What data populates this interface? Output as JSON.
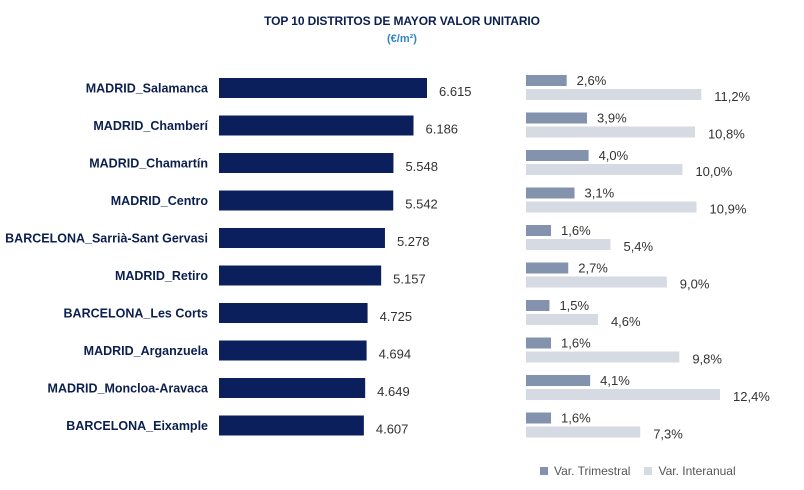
{
  "chart_data": {
    "type": "bar",
    "title": "TOP 10 DISTRITOS DE MAYOR VALOR UNITARIO",
    "subtitle": "(€/m²)",
    "categories": [
      "MADRID_Salamanca",
      "MADRID_Chamberí",
      "MADRID_Chamartín",
      "MADRID_Centro",
      "BARCELONA_Sarrià-Sant Gervasi",
      "MADRID_Retiro",
      "BARCELONA_Les Corts",
      "MADRID_Arganzuela",
      "MADRID_Moncloa-Aravaca",
      "BARCELONA_Eixample"
    ],
    "values": [
      6615,
      6186,
      5548,
      5542,
      5278,
      5157,
      4725,
      4694,
      4649,
      4607
    ],
    "value_labels": [
      "6.615",
      "6.186",
      "5.548",
      "5.542",
      "5.278",
      "5.157",
      "4.725",
      "4.694",
      "4.649",
      "4.607"
    ],
    "series": [
      {
        "name": "Var. Trimestral",
        "values": [
          2.6,
          3.9,
          4.0,
          3.1,
          1.6,
          2.7,
          1.5,
          1.6,
          4.1,
          1.6
        ],
        "labels": [
          "2,6%",
          "3,9%",
          "4,0%",
          "3,1%",
          "1,6%",
          "2,7%",
          "1,5%",
          "1,6%",
          "4,1%",
          "1,6%"
        ]
      },
      {
        "name": "Var. Interanual",
        "values": [
          11.2,
          10.8,
          10.0,
          10.9,
          5.4,
          9.0,
          4.6,
          9.8,
          12.4,
          7.3
        ],
        "labels": [
          "11,2%",
          "10,8%",
          "10,0%",
          "10,9%",
          "5,4%",
          "9,0%",
          "4,6%",
          "9,8%",
          "12,4%",
          "7,3%"
        ]
      }
    ],
    "colors": {
      "main": "#0b1f5c",
      "trimestral": "#8493ad",
      "interanual": "#d6dae3"
    },
    "legend_position": "bottom-right",
    "grid": false
  }
}
